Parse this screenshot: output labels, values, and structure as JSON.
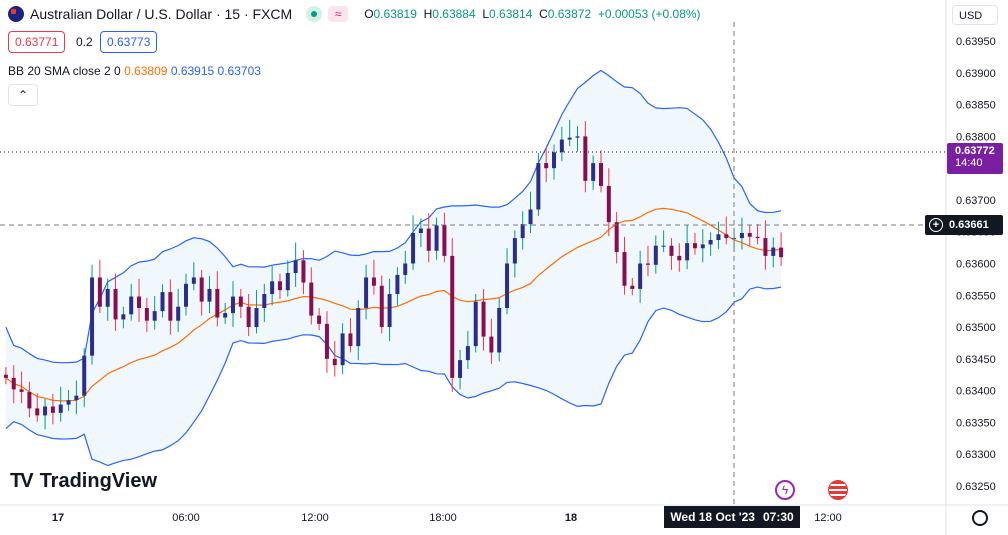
{
  "header": {
    "symbol_title": "Australian Dollar / U.S. Dollar · 15 · FXCM",
    "ohlc": {
      "o_label": "O",
      "o": "0.63819",
      "h_label": "H",
      "h": "0.63884",
      "l_label": "L",
      "l": "0.63814",
      "c_label": "C",
      "c": "0.63872",
      "change": "+0.00053 (+0.08%)"
    },
    "bid": "0.63771",
    "spread": "0.2",
    "ask": "0.63773",
    "indicator": {
      "name": "BB 20 SMA close 2 0",
      "basis": "0.63809",
      "upper": "0.63915",
      "lower": "0.63703"
    },
    "currency": "USD"
  },
  "overlay": {
    "current_price": "0.63772",
    "countdown": "14:40",
    "crosshair_price": "0.63661",
    "crosshair_time": "Wed 18 Oct '23",
    "crosshair_clock": "07:30"
  },
  "branding": {
    "logo": "TradingView"
  },
  "colors": {
    "up": "#089981",
    "down": "#880e4f",
    "candle_up": "#2a2e8a",
    "candle_down": "#880e4f",
    "band": "#2962ff",
    "basis": "#ff6d00",
    "fill": "#e3f2fd",
    "price_tag": "#7b1fa2"
  },
  "chart_data": {
    "type": "candlestick",
    "title": "Australian Dollar / U.S. Dollar · 15 · FXCM",
    "x_ticks": [
      "17",
      "06:00",
      "12:00",
      "18:00",
      "18",
      "12:00"
    ],
    "y_ticks": [
      "0.63950",
      "0.63900",
      "0.63850",
      "0.63800",
      "0.63750",
      "0.63700",
      "0.63650",
      "0.63600",
      "0.63550",
      "0.63500",
      "0.63450",
      "0.63400",
      "0.63350",
      "0.63300",
      "0.63250"
    ],
    "ylim": [
      0.6322,
      0.6398
    ],
    "bar_count": 100,
    "close": [
      0.6342,
      0.63402,
      0.63398,
      0.63372,
      0.63361,
      0.63375,
      0.63365,
      0.63378,
      0.63385,
      0.63392,
      0.63455,
      0.63578,
      0.63532,
      0.6356,
      0.63512,
      0.6352,
      0.63548,
      0.6353,
      0.6351,
      0.63525,
      0.63555,
      0.6351,
      0.63532,
      0.63568,
      0.63578,
      0.6354,
      0.6356,
      0.63515,
      0.63522,
      0.63548,
      0.63532,
      0.635,
      0.6353,
      0.63552,
      0.63572,
      0.63558,
      0.63585,
      0.63605,
      0.6357,
      0.63518,
      0.63505,
      0.6345,
      0.6344,
      0.6349,
      0.6347,
      0.6353,
      0.63578,
      0.63565,
      0.635,
      0.63552,
      0.63582,
      0.636,
      0.63648,
      0.63655,
      0.6362,
      0.6366,
      0.63612,
      0.6342,
      0.63448,
      0.6347,
      0.6354,
      0.63485,
      0.6346,
      0.6353,
      0.636,
      0.6364,
      0.63662,
      0.63685,
      0.63758,
      0.6375,
      0.63775,
      0.63795,
      0.63798,
      0.638,
      0.6373,
      0.63758,
      0.63722,
      0.63665,
      0.63618,
      0.63565,
      0.6356,
      0.636,
      0.63598,
      0.63628,
      0.63628,
      0.63612,
      0.63605,
      0.63632,
      0.63624,
      0.6363,
      0.63637,
      0.63646,
      0.6364,
      0.6364,
      0.63648,
      0.63642,
      0.6364,
      0.63612,
      0.63625,
      0.6361
    ],
    "note": "close values above are a representative subset used for the price path; candles drawn sequentially",
    "bands": {
      "basis_last": 0.63809,
      "upper_last": 0.63915,
      "lower_last": 0.63703
    },
    "current_price": 0.63772,
    "crosshair_price": 0.63661
  }
}
